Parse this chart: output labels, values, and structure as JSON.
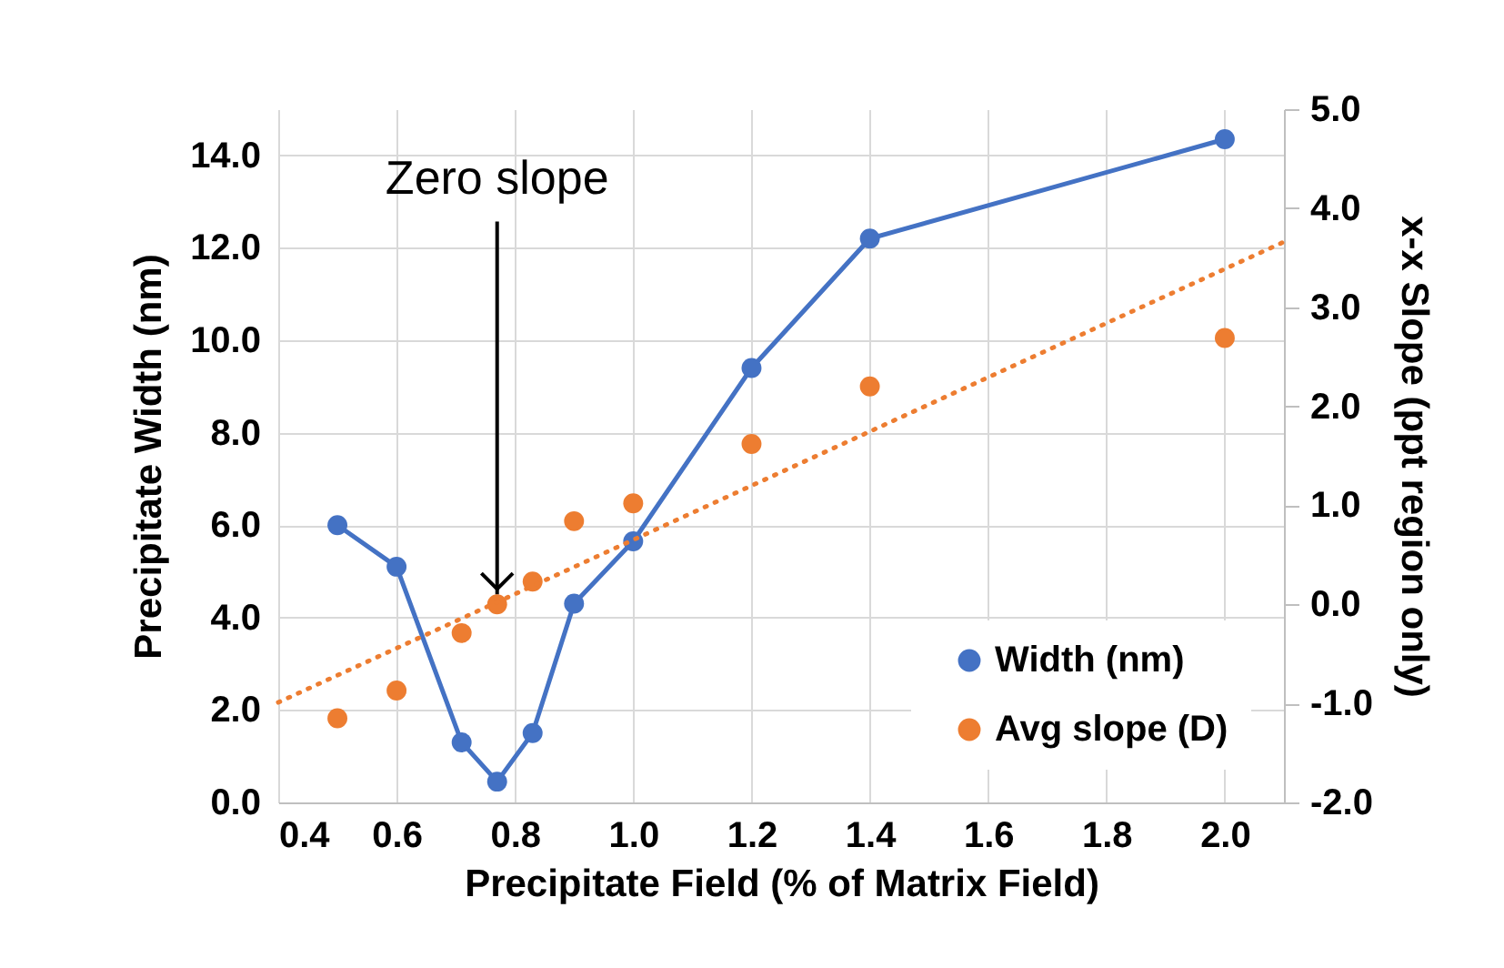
{
  "chart_data": {
    "type": "line",
    "xlabel": "Precipitate Field (% of Matrix Field)",
    "ylabel": "Precipitate Width (nm)",
    "y2label": "x-x Slope (ppt region only)",
    "xlim": [
      0.4,
      2.1
    ],
    "xticks": [
      0.4,
      0.6,
      0.8,
      {
        "value": 1,
        "label": "1.0"
      },
      1.2,
      1.4,
      1.6,
      1.8,
      {
        "value": 2,
        "label": "2.0"
      }
    ],
    "ylim": [
      0,
      15
    ],
    "yticks": [
      {
        "value": 0,
        "label": "0.0"
      },
      {
        "value": 2,
        "label": "2.0"
      },
      {
        "value": 4,
        "label": "4.0"
      },
      {
        "value": 6,
        "label": "6.0"
      },
      {
        "value": 8,
        "label": "8.0"
      },
      {
        "value": 10,
        "label": "10.0"
      },
      {
        "value": 12,
        "label": "12.0"
      },
      {
        "value": 14,
        "label": "14.0"
      }
    ],
    "y2lim": [
      -2,
      5
    ],
    "y2ticks": [
      {
        "value": -2,
        "label": "-2.0"
      },
      {
        "value": -1,
        "label": "-1.0"
      },
      {
        "value": 0,
        "label": "0.0"
      },
      {
        "value": 1,
        "label": "1.0"
      },
      {
        "value": 2,
        "label": "2.0"
      },
      {
        "value": 3,
        "label": "3.0"
      },
      {
        "value": 4,
        "label": "4.0"
      },
      {
        "value": 5,
        "label": "5.0"
      }
    ],
    "x": [
      0.5,
      0.6,
      0.71,
      0.77,
      0.83,
      0.9,
      1.0,
      1.2,
      1.4,
      2.0
    ],
    "series": [
      {
        "name": "Width (nm)",
        "color": "#4472c4",
        "values": [
          6.0,
          5.1,
          1.3,
          0.45,
          1.5,
          4.3,
          5.65,
          9.4,
          12.2,
          14.35
        ]
      },
      {
        "name": "Avg slope (D)",
        "type": "scatter",
        "color": "#ed7d31",
        "axis": "y2",
        "values": [
          -1.15,
          -0.87,
          -0.29,
          0.0,
          0.23,
          0.84,
          1.02,
          1.62,
          2.2,
          2.69
        ]
      },
      {
        "color": "#ed7d31",
        "axis": "y2",
        "x": [
          0.4,
          2.1
        ],
        "values": [
          -0.99,
          3.66
        ],
        "line_style": "dotted",
        "marker": "none"
      }
    ],
    "annotations": [
      {
        "text": "Zero slope",
        "x": 0.77,
        "y": 4.5
      }
    ],
    "grid": true,
    "legend": "bottom right",
    "marker": "circle"
  }
}
